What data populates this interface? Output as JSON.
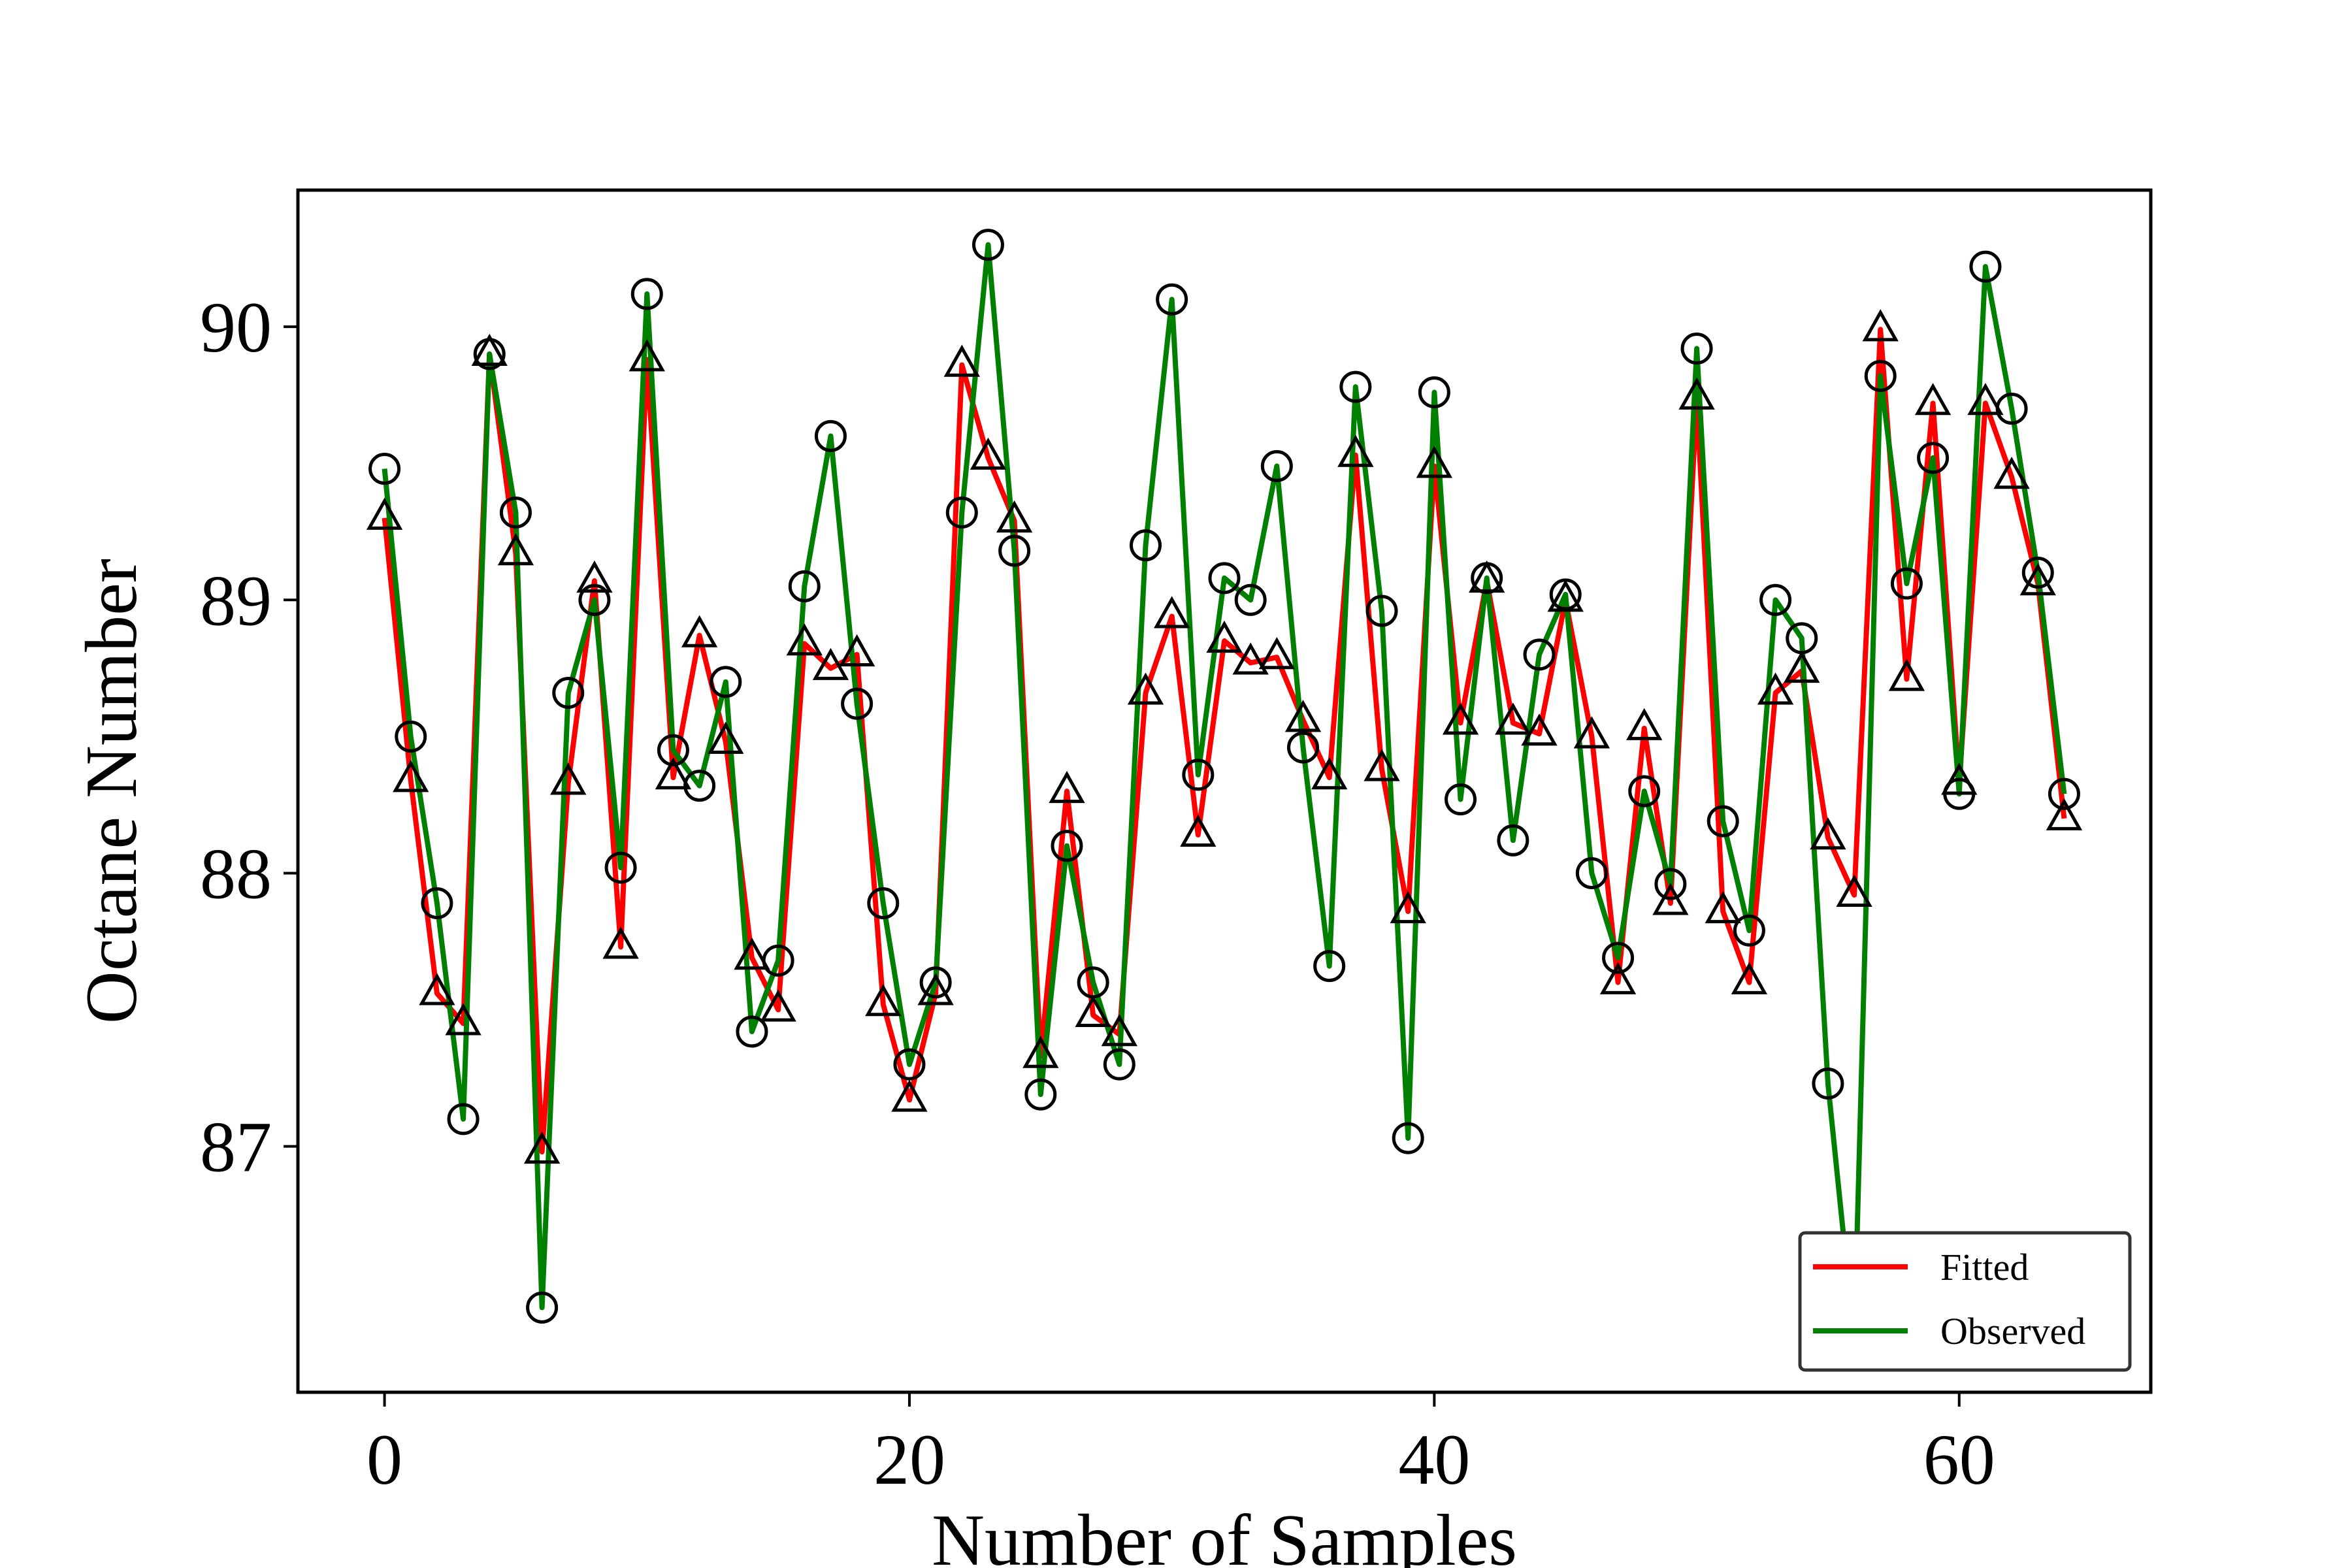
{
  "chart_data": {
    "type": "line",
    "title": "",
    "xlabel": "Number of Samples",
    "ylabel": "Octane Number",
    "xlim": [
      -3.3,
      67.3
    ],
    "ylim": [
      86.1,
      90.5
    ],
    "xticks": [
      0,
      20,
      40,
      60
    ],
    "yticks": [
      87,
      88,
      89,
      90
    ],
    "xtick_labels": [
      "0",
      "20",
      "40",
      "60"
    ],
    "ytick_labels": [
      "87",
      "88",
      "89",
      "90"
    ],
    "grid": false,
    "legend_position": "lower-right",
    "x": [
      0,
      1,
      2,
      3,
      4,
      5,
      6,
      7,
      8,
      9,
      10,
      11,
      12,
      13,
      14,
      15,
      16,
      17,
      18,
      19,
      20,
      21,
      22,
      23,
      24,
      25,
      26,
      27,
      28,
      29,
      30,
      31,
      32,
      33,
      34,
      35,
      36,
      37,
      38,
      39,
      40,
      41,
      42,
      43,
      44,
      45,
      46,
      47,
      48,
      49,
      50,
      51,
      52,
      53,
      54,
      55,
      56,
      57,
      58,
      59,
      60,
      61,
      62,
      63,
      64
    ],
    "series": [
      {
        "name": "Fitted",
        "color": "#ff0000",
        "marker": "triangle",
        "values": [
          89.3,
          88.34,
          87.56,
          87.45,
          89.9,
          89.17,
          86.98,
          88.33,
          89.07,
          87.73,
          89.88,
          88.35,
          88.87,
          88.48,
          87.69,
          87.5,
          88.84,
          88.75,
          88.8,
          87.52,
          87.17,
          87.56,
          89.86,
          89.52,
          89.29,
          87.33,
          88.3,
          87.48,
          87.41,
          88.66,
          88.94,
          88.14,
          88.85,
          88.77,
          88.79,
          88.56,
          88.35,
          89.53,
          88.38,
          87.86,
          89.49,
          88.55,
          89.07,
          88.55,
          88.51,
          89.0,
          88.5,
          87.6,
          88.53,
          87.89,
          89.74,
          87.86,
          87.6,
          88.66,
          88.74,
          88.13,
          87.92,
          89.99,
          88.71,
          89.72,
          88.33,
          89.72,
          89.45,
          89.06,
          88.2
        ]
      },
      {
        "name": "Observed",
        "color": "#008000",
        "marker": "circle",
        "values": [
          89.48,
          88.5,
          87.89,
          87.1,
          89.9,
          89.32,
          86.41,
          88.66,
          89.0,
          88.02,
          90.12,
          88.45,
          88.32,
          88.7,
          87.42,
          87.68,
          89.05,
          89.6,
          88.62,
          87.89,
          87.3,
          87.6,
          89.32,
          90.3,
          89.18,
          87.19,
          88.1,
          87.6,
          87.3,
          89.2,
          90.1,
          88.36,
          89.08,
          89.0,
          89.49,
          88.46,
          87.66,
          89.78,
          88.96,
          87.03,
          89.76,
          88.27,
          89.08,
          88.12,
          88.8,
          89.02,
          88.0,
          87.69,
          88.3,
          87.96,
          89.92,
          88.19,
          87.79,
          89.0,
          88.86,
          87.23,
          86.29,
          89.82,
          89.06,
          89.52,
          88.29,
          90.22,
          89.7,
          89.1,
          88.29
        ]
      }
    ]
  }
}
